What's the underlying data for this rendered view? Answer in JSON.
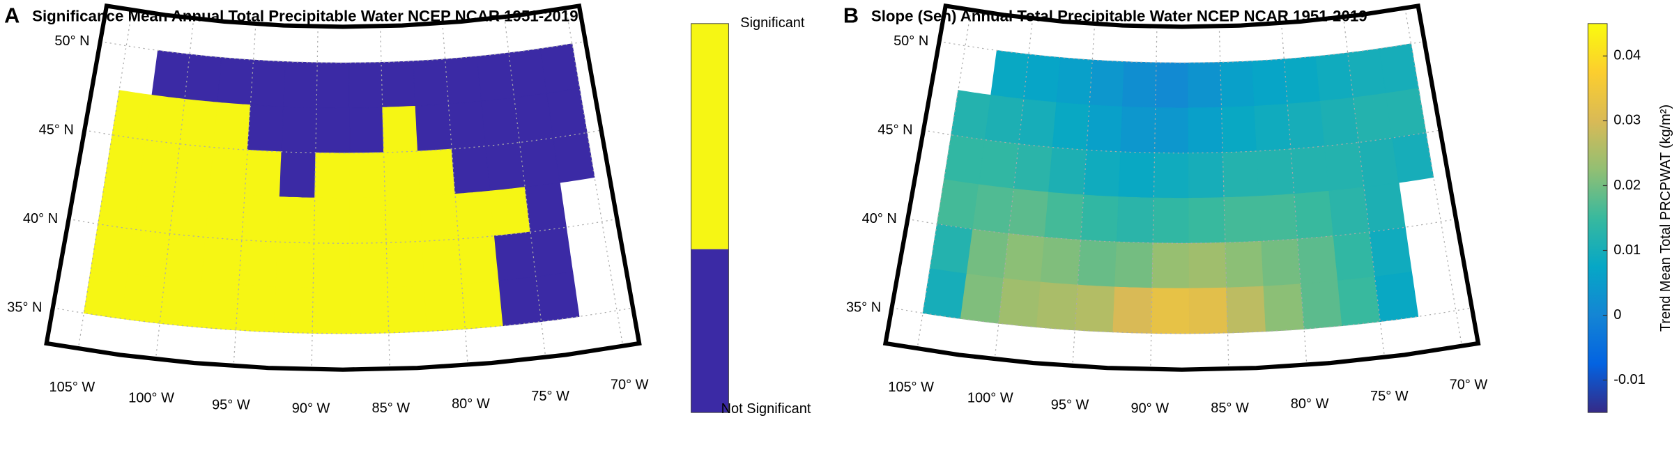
{
  "chart_data": [
    {
      "type": "categorical_map",
      "label": "A",
      "title": "Significance Mean Annual Total Precipitable Water NCEP NCAR 1951-2019",
      "categories": [
        "Not Significant",
        "Significant"
      ],
      "colors": [
        "#3b2aa5",
        "#f6f614"
      ],
      "lon_bins": [
        -105,
        -102.5,
        -100,
        -97.5,
        -95,
        -92.5,
        -90,
        -87.5,
        -85,
        -82.5,
        -80,
        -77.5,
        -75,
        -72.5,
        -70
      ],
      "lat_bins": [
        50,
        47.5,
        45,
        42.5,
        40,
        37.5,
        35
      ],
      "values": [
        [
          null,
          0,
          0,
          0,
          0,
          0,
          0,
          0,
          0,
          0,
          0,
          0,
          0,
          0
        ],
        [
          1,
          1,
          1,
          1,
          0,
          0,
          0,
          0,
          1,
          0,
          0,
          0,
          0,
          0
        ],
        [
          1,
          1,
          1,
          1,
          1,
          0,
          1,
          1,
          1,
          1,
          0,
          0,
          0,
          0
        ],
        [
          1,
          1,
          1,
          1,
          1,
          1,
          1,
          1,
          1,
          1,
          1,
          1,
          0,
          null
        ],
        [
          1,
          1,
          1,
          1,
          1,
          1,
          1,
          1,
          1,
          1,
          1,
          0,
          0,
          null
        ],
        [
          1,
          1,
          1,
          1,
          1,
          1,
          1,
          1,
          1,
          1,
          1,
          0,
          0,
          null
        ]
      ],
      "lat_ticks": [
        {
          "value": 50,
          "label": "50° N"
        },
        {
          "value": 45,
          "label": "45° N"
        },
        {
          "value": 40,
          "label": "40° N"
        },
        {
          "value": 35,
          "label": "35° N"
        }
      ],
      "lon_ticks": [
        {
          "value": -105,
          "label": "105° W"
        },
        {
          "value": -100,
          "label": "100° W"
        },
        {
          "value": -95,
          "label": "95° W"
        },
        {
          "value": -90,
          "label": "90° W"
        },
        {
          "value": -85,
          "label": "85° W"
        },
        {
          "value": -80,
          "label": "80° W"
        },
        {
          "value": -75,
          "label": "75° W"
        },
        {
          "value": -70,
          "label": "70° W"
        }
      ]
    },
    {
      "type": "heatmap",
      "label": "B",
      "title": "Slope (Sen) Annual Total Precipitable Water NCEP NCAR 1951-2019",
      "colormap": "parula",
      "clim": [
        -0.015,
        0.045
      ],
      "cticks": [
        -0.01,
        0,
        0.01,
        0.02,
        0.03,
        0.04
      ],
      "colorbar_label": "Trend Mean Total PRCPWAT (kg/m²)",
      "lon_bins": [
        -105,
        -102.5,
        -100,
        -97.5,
        -95,
        -92.5,
        -90,
        -87.5,
        -85,
        -82.5,
        -80,
        -77.5,
        -75,
        -72.5,
        -70
      ],
      "lat_bins": [
        50,
        47.5,
        45,
        42.5,
        40,
        37.5,
        35
      ],
      "values": [
        [
          null,
          0.008,
          0.007,
          0.006,
          0.004,
          0.002,
          0.001,
          0.003,
          0.006,
          0.007,
          0.008,
          0.009,
          0.01,
          0.01
        ],
        [
          0.012,
          0.011,
          0.01,
          0.008,
          0.006,
          0.004,
          0.004,
          0.006,
          0.008,
          0.009,
          0.01,
          0.011,
          0.012,
          0.012
        ],
        [
          0.014,
          0.014,
          0.013,
          0.011,
          0.009,
          0.008,
          0.009,
          0.01,
          0.012,
          0.012,
          0.012,
          0.012,
          0.011,
          0.01
        ],
        [
          0.016,
          0.017,
          0.018,
          0.016,
          0.014,
          0.013,
          0.014,
          0.015,
          0.016,
          0.016,
          0.015,
          0.013,
          0.011,
          null
        ],
        [
          0.012,
          0.02,
          0.022,
          0.021,
          0.019,
          0.02,
          0.023,
          0.024,
          0.022,
          0.02,
          0.018,
          0.014,
          0.009,
          null
        ],
        [
          0.01,
          0.021,
          0.024,
          0.025,
          0.026,
          0.03,
          0.033,
          0.032,
          0.027,
          0.022,
          0.018,
          0.015,
          0.008,
          null
        ]
      ],
      "lat_ticks": [
        {
          "value": 50,
          "label": "50° N"
        },
        {
          "value": 45,
          "label": "45° N"
        },
        {
          "value": 40,
          "label": "40° N"
        },
        {
          "value": 35,
          "label": "35° N"
        }
      ],
      "lon_ticks": [
        {
          "value": -105,
          "label": "105° W"
        },
        {
          "value": -100,
          "label": "100° W"
        },
        {
          "value": -95,
          "label": "95° W"
        },
        {
          "value": -90,
          "label": "90° W"
        },
        {
          "value": -85,
          "label": "85° W"
        },
        {
          "value": -80,
          "label": "80° W"
        },
        {
          "value": -75,
          "label": "75° W"
        },
        {
          "value": -70,
          "label": "70° W"
        }
      ]
    }
  ]
}
